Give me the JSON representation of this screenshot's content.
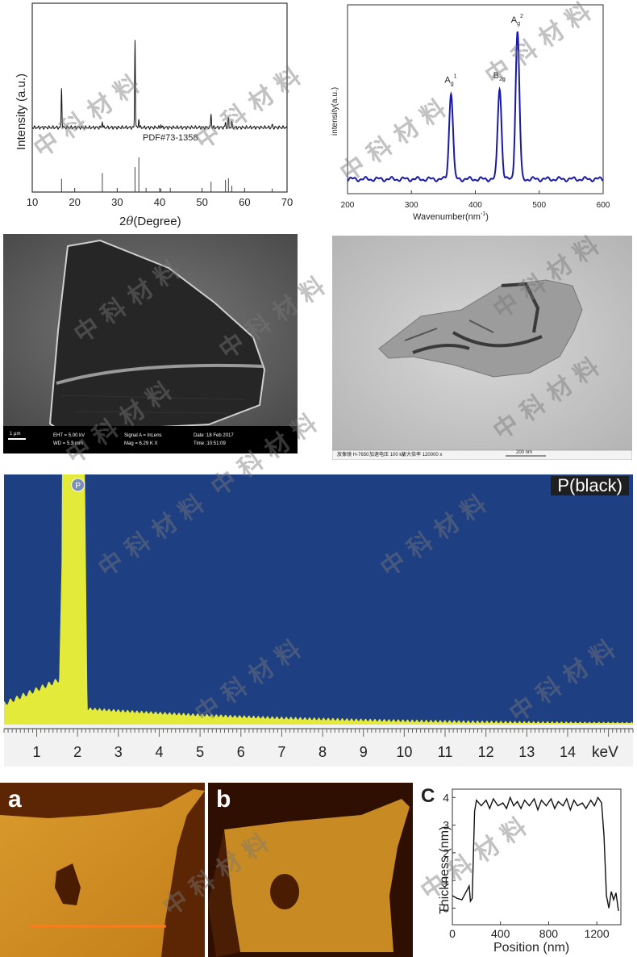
{
  "watermark": "中 科 材 料",
  "chart_data": [
    {
      "id": "xrd",
      "type": "line",
      "xlabel_prefix": "2",
      "xlabel_theta": "θ",
      "xlabel_suffix": "(Degree)",
      "ylabel": "Intensity (a.u.)",
      "xlim": [
        10,
        70
      ],
      "xticks": [
        "10",
        "20",
        "30",
        "40",
        "50",
        "60",
        "70"
      ],
      "annotation": "PDF#73-1358",
      "peaks": [
        {
          "x": 16.9,
          "h": 0.45
        },
        {
          "x": 26.5,
          "h": 0.07
        },
        {
          "x": 34.2,
          "h": 1.0
        },
        {
          "x": 35.1,
          "h": 0.1
        },
        {
          "x": 40.3,
          "h": 0.03
        },
        {
          "x": 52.1,
          "h": 0.16
        },
        {
          "x": 55.5,
          "h": 0.06
        },
        {
          "x": 56.2,
          "h": 0.1
        },
        {
          "x": 57.0,
          "h": 0.05
        },
        {
          "x": 66.5,
          "h": 0.03
        }
      ],
      "reference_lines": [
        {
          "x": 16.9,
          "h": 0.38
        },
        {
          "x": 26.5,
          "h": 0.55
        },
        {
          "x": 34.2,
          "h": 0.72
        },
        {
          "x": 35.1,
          "h": 1.0
        },
        {
          "x": 36.8,
          "h": 0.12
        },
        {
          "x": 40.3,
          "h": 0.1
        },
        {
          "x": 42.5,
          "h": 0.12
        },
        {
          "x": 52.1,
          "h": 0.3
        },
        {
          "x": 55.5,
          "h": 0.35
        },
        {
          "x": 56.2,
          "h": 0.4
        },
        {
          "x": 57.0,
          "h": 0.18
        },
        {
          "x": 66.5,
          "h": 0.1
        }
      ]
    },
    {
      "id": "raman",
      "type": "line",
      "xlabel": "Wavenumber(nm",
      "xlabel_exp": "-1",
      "xlabel_close": ")",
      "ylabel": "intensity(a.u.)",
      "xlim": [
        200,
        600
      ],
      "xticks": [
        "200",
        "300",
        "400",
        "500",
        "600"
      ],
      "color": "#1a1aa8",
      "peaks": [
        {
          "x": 362,
          "h": 0.59,
          "label": "A",
          "sub": "g",
          "sup": "1"
        },
        {
          "x": 438,
          "h": 0.62,
          "label": "B",
          "sub": "2g",
          "sup": ""
        },
        {
          "x": 466,
          "h": 1.0,
          "label": "A",
          "sub": "g",
          "sup": "2"
        }
      ]
    },
    {
      "id": "edx",
      "type": "area",
      "xlabel": "keV",
      "xlim": [
        0.2,
        15.6
      ],
      "xticks": [
        "1",
        "2",
        "3",
        "4",
        "5",
        "6",
        "7",
        "8",
        "9",
        "10",
        "11",
        "12",
        "13",
        "14"
      ],
      "legend": "P(black)",
      "element_marker": "P",
      "background_color": "#1e3f82",
      "fill_color": "#e4ea3a",
      "peak_kev": 2.01
    },
    {
      "id": "afm_profile",
      "type": "line",
      "xlabel": "Position (nm)",
      "ylabel": "Thickness (nm)",
      "xlim": [
        0,
        1400
      ],
      "ylim": [
        -0.6,
        4.3
      ],
      "xticks": [
        "0",
        "400",
        "800",
        "1200"
      ],
      "yticks": [
        "0",
        "1",
        "2",
        "3",
        "4"
      ],
      "panel_letter": "C",
      "points": [
        [
          0,
          0.45
        ],
        [
          40,
          0.35
        ],
        [
          80,
          0.3
        ],
        [
          110,
          0.55
        ],
        [
          140,
          0.8
        ],
        [
          150,
          0.25
        ],
        [
          165,
          0.35
        ],
        [
          185,
          3.5
        ],
        [
          200,
          3.9
        ],
        [
          240,
          3.7
        ],
        [
          280,
          3.9
        ],
        [
          310,
          3.6
        ],
        [
          340,
          3.95
        ],
        [
          380,
          3.7
        ],
        [
          420,
          3.8
        ],
        [
          450,
          3.6
        ],
        [
          480,
          4.0
        ],
        [
          510,
          3.7
        ],
        [
          540,
          3.85
        ],
        [
          570,
          3.6
        ],
        [
          600,
          3.9
        ],
        [
          640,
          3.7
        ],
        [
          680,
          3.95
        ],
        [
          710,
          3.55
        ],
        [
          740,
          3.9
        ],
        [
          780,
          3.7
        ],
        [
          820,
          3.95
        ],
        [
          850,
          3.6
        ],
        [
          880,
          3.85
        ],
        [
          920,
          3.7
        ],
        [
          950,
          3.95
        ],
        [
          980,
          3.55
        ],
        [
          1010,
          3.9
        ],
        [
          1040,
          3.7
        ],
        [
          1080,
          3.8
        ],
        [
          1110,
          3.6
        ],
        [
          1150,
          3.9
        ],
        [
          1180,
          3.7
        ],
        [
          1210,
          4.0
        ],
        [
          1240,
          3.8
        ],
        [
          1260,
          2.6
        ],
        [
          1280,
          0.45
        ],
        [
          1300,
          0.0
        ],
        [
          1320,
          0.6
        ],
        [
          1340,
          0.3
        ],
        [
          1360,
          0.55
        ],
        [
          1380,
          -0.1
        ]
      ]
    }
  ],
  "sem": {
    "scale_label": "1 μm",
    "line1_col1": "EHT = 5.00 kV",
    "line2_col1": "WD = 5.3 mm",
    "line1_col2": "Signal A = InLens",
    "line2_col2": "Mag = 6.29 K X",
    "line1_col3": "Date :18 Feb 2017",
    "line2_col3": "Time :10:51:09"
  },
  "tem": {
    "footer_col1": "放像镜",
    "footer_col1b": "H-7650",
    "footer_col2": "加速电压",
    "footer_col2b": "100 kV",
    "footer_col3": "放大倍率",
    "footer_col3b": "120000 x",
    "scale_label": "200 nm"
  },
  "afm": {
    "letter_a": "a",
    "letter_b": "b"
  }
}
